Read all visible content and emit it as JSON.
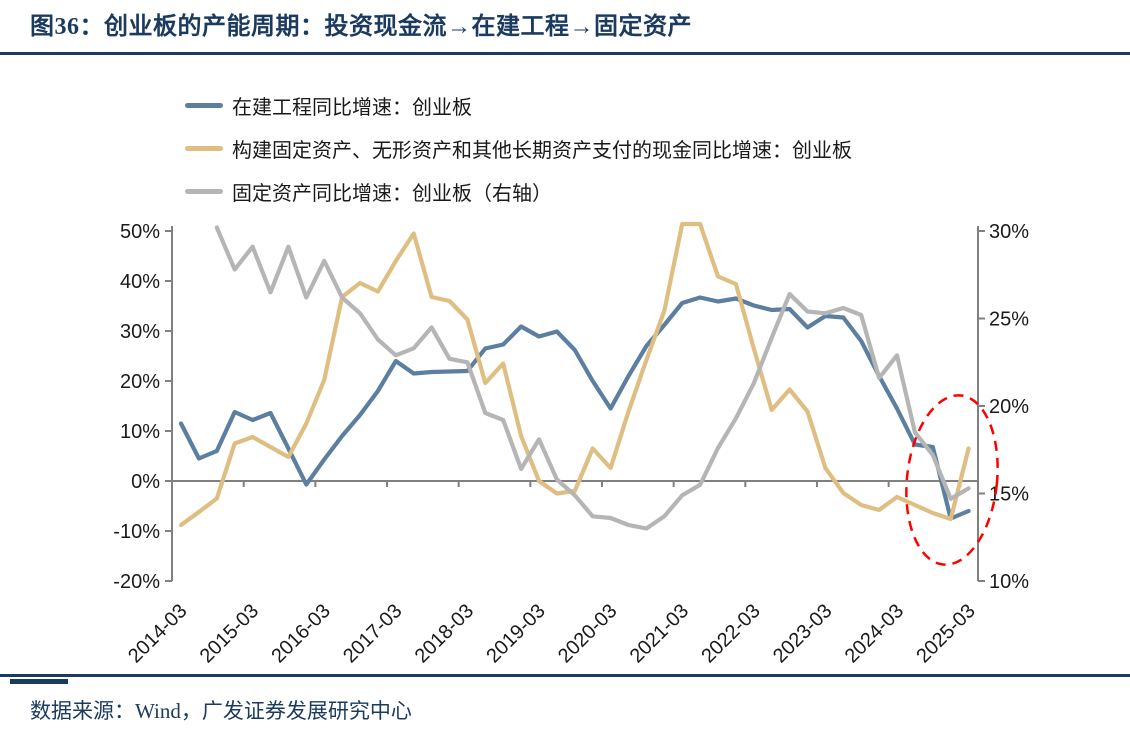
{
  "figure": {
    "title": "图36：创业板的产能周期：投资现金流→在建工程→固定资产",
    "source": "数据来源：Wind，广发证券发展研究中心"
  },
  "colors": {
    "accent_navy": "#1B3A5F",
    "axis_gray": "#808080",
    "tick_text": "#1a1a1a",
    "annotation_red": "#FF0000"
  },
  "chart_data": {
    "type": "line",
    "title": "创业板的产能周期：投资现金流→在建工程→固定资产",
    "x": [
      "2014-03",
      "2014-06",
      "2014-09",
      "2014-12",
      "2015-03",
      "2015-06",
      "2015-09",
      "2015-12",
      "2016-03",
      "2016-06",
      "2016-09",
      "2016-12",
      "2017-03",
      "2017-06",
      "2017-09",
      "2017-12",
      "2018-03",
      "2018-06",
      "2018-09",
      "2018-12",
      "2019-03",
      "2019-06",
      "2019-09",
      "2019-12",
      "2020-03",
      "2020-06",
      "2020-09",
      "2020-12",
      "2021-03",
      "2021-06",
      "2021-09",
      "2021-12",
      "2022-03",
      "2022-06",
      "2022-09",
      "2022-12",
      "2023-03",
      "2023-06",
      "2023-09",
      "2023-12",
      "2024-03",
      "2024-06",
      "2024-09",
      "2024-12",
      "2025-03"
    ],
    "series": [
      {
        "name": "在建工程同比增速：创业板",
        "axis": "left",
        "color": "#5B7EA1",
        "clip_top": false,
        "values": [
          11.5,
          4.5,
          6.0,
          13.8,
          12.2,
          13.6,
          6.5,
          -0.7,
          4.3,
          9.0,
          13.2,
          18.0,
          24.0,
          21.5,
          21.8,
          21.9,
          22.0,
          26.5,
          27.3,
          30.9,
          28.9,
          29.9,
          26.2,
          20.0,
          14.5,
          21.0,
          27.0,
          31.2,
          35.6,
          36.7,
          35.9,
          36.5,
          35.1,
          34.2,
          34.4,
          30.7,
          33.0,
          32.7,
          28.0,
          21.0,
          14.5,
          7.3,
          6.8,
          -7.5,
          -6.0
        ]
      },
      {
        "name": "构建固定资产、无形资产和其他长期资产支付的现金同比增速：创业板",
        "axis": "left",
        "color": "#DFBE82",
        "clip_top": true,
        "values": [
          -8.8,
          -6.2,
          -3.5,
          7.5,
          8.8,
          6.8,
          4.8,
          11.5,
          20.2,
          36.8,
          39.6,
          37.9,
          44.0,
          49.5,
          36.8,
          36.0,
          32.3,
          19.6,
          23.5,
          9.0,
          0.0,
          -2.5,
          -2.0,
          6.5,
          2.6,
          13.9,
          24.2,
          34.0,
          55.0,
          53.0,
          40.9,
          39.4,
          26.5,
          14.2,
          18.3,
          13.9,
          2.6,
          -2.4,
          -4.8,
          -5.8,
          -3.2,
          -4.8,
          -6.4,
          -7.6,
          6.5
        ]
      },
      {
        "name": "固定资产同比增速：创业板（右轴）",
        "axis": "right",
        "color": "#B5B5B5",
        "clip_top": false,
        "values": [
          null,
          null,
          30.2,
          27.8,
          29.1,
          26.5,
          29.1,
          26.2,
          28.3,
          26.2,
          25.3,
          23.8,
          22.9,
          23.3,
          24.5,
          22.7,
          22.5,
          19.6,
          19.2,
          16.4,
          18.1,
          15.8,
          14.9,
          13.7,
          13.6,
          13.2,
          13.0,
          13.7,
          14.9,
          15.5,
          17.6,
          19.3,
          21.3,
          23.9,
          26.4,
          25.4,
          25.3,
          25.6,
          25.2,
          21.6,
          22.9,
          18.5,
          17.2,
          14.7,
          15.3
        ]
      }
    ],
    "left_axis": {
      "min": -20,
      "max": 50,
      "step": 10,
      "ticks": [
        {
          "value": 50,
          "label": "50%"
        },
        {
          "value": 40,
          "label": "40%"
        },
        {
          "value": 30,
          "label": "30%"
        },
        {
          "value": 20,
          "label": "20%"
        },
        {
          "value": 10,
          "label": "10%"
        },
        {
          "value": 0,
          "label": "0%"
        },
        {
          "value": -10,
          "label": "-10%"
        },
        {
          "value": -20,
          "label": "-20%"
        }
      ]
    },
    "right_axis": {
      "min": 10,
      "max": 30,
      "step": 5,
      "ticks": [
        {
          "value": 30,
          "label": "30%"
        },
        {
          "value": 25,
          "label": "25%"
        },
        {
          "value": 20,
          "label": "20%"
        },
        {
          "value": 15,
          "label": "15%"
        },
        {
          "value": 10,
          "label": "10%"
        }
      ]
    },
    "x_axis": {
      "year_labels": [
        "2014-03",
        "2015-03",
        "2016-03",
        "2017-03",
        "2018-03",
        "2019-03",
        "2020-03",
        "2021-03",
        "2022-03",
        "2023-03",
        "2024-03",
        "2025-03"
      ]
    },
    "annotation": {
      "shape": "dashed-ellipse",
      "color": "#FF0000",
      "highlight_x_range": [
        "2024-06",
        "2025-03"
      ]
    },
    "layout_hints": {
      "grid": "zero-line-only",
      "legend_position": "top-left",
      "x_label_rotation": -45
    }
  }
}
